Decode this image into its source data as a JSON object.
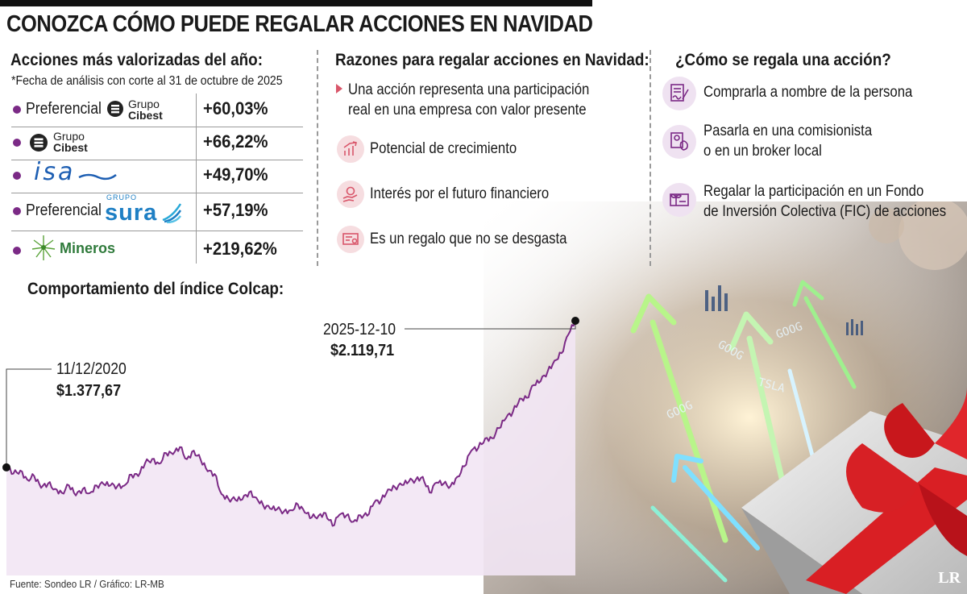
{
  "title": "CONOZCA CÓMO PUEDE REGALAR ACCIONES EN NAVIDAD",
  "stocks_section": {
    "heading": "Acciones más valorizadas del año:",
    "note": "*Fecha de análisis con corte al 31 de octubre de 2025",
    "rows": [
      {
        "prefix": "Preferencial",
        "logo_top": "Grupo",
        "logo_bottom": "Cibest",
        "value": "+60,03%"
      },
      {
        "prefix": "",
        "logo_top": "Grupo",
        "logo_bottom": "Cibest",
        "value": "+66,22%"
      },
      {
        "prefix": "",
        "logo_text": "isa",
        "value": "+49,70%"
      },
      {
        "prefix": "Preferencial",
        "logo_top": "GRUPO",
        "logo_text": "sura",
        "value": "+57,19%"
      },
      {
        "prefix": "",
        "logo_text": "Mineros",
        "value": "+219,62%"
      }
    ]
  },
  "reasons_section": {
    "heading": "Razones para regalar acciones en Navidad:",
    "items": [
      {
        "lines": [
          "Una acción representa una participación",
          "real en una empresa con valor presente"
        ],
        "icon": "triangle-bullet-icon"
      },
      {
        "lines": [
          "Potencial de crecimiento"
        ],
        "icon": "growth-chart-icon"
      },
      {
        "lines": [
          "Interés por el futuro financiero"
        ],
        "icon": "money-hand-icon"
      },
      {
        "lines": [
          "Es un regalo que no se desgasta"
        ],
        "icon": "certificate-icon"
      }
    ]
  },
  "how_section": {
    "heading": "¿Cómo se regala una acción?",
    "items": [
      {
        "lines": [
          "Comprarla a nombre de la persona"
        ],
        "icon": "signed-document-icon"
      },
      {
        "lines": [
          "Pasarla en una comisionista",
          "o en un broker local"
        ],
        "icon": "money-bag-document-icon"
      },
      {
        "lines": [
          "Regalar la participación en un Fondo",
          "de Inversión Colectiva (FIC) de acciones"
        ],
        "icon": "gift-card-icon"
      }
    ]
  },
  "chart_heading": "Comportamiento del índice Colcap:",
  "chart_data": {
    "type": "line",
    "series": [
      {
        "values": [
          1378,
          1360,
          1345,
          1320,
          1310,
          1290,
          1300,
          1280,
          1255,
          1265,
          1240,
          1250,
          1270,
          1290,
          1300,
          1285,
          1260,
          1295,
          1330,
          1360,
          1400,
          1420,
          1390,
          1430,
          1460,
          1475,
          1445,
          1455,
          1410,
          1350,
          1330,
          1265,
          1215,
          1235,
          1200,
          1245,
          1220,
          1180,
          1195,
          1160,
          1170,
          1140,
          1185,
          1150,
          1125,
          1160,
          1135,
          1090,
          1115,
          1135,
          1110,
          1140,
          1155,
          1180,
          1215,
          1245,
          1285,
          1300,
          1310,
          1330,
          1305,
          1255,
          1285,
          1310,
          1295,
          1330,
          1390,
          1435,
          1485,
          1515,
          1545,
          1585,
          1620,
          1660,
          1700,
          1745,
          1790,
          1835,
          1865,
          1905,
          1955,
          2030,
          2119.71
        ]
      }
    ],
    "annotations": [
      {
        "date": "11/12/2020",
        "value": "$1.377,67"
      },
      {
        "date": "2025-12-10",
        "value": "$2.119,71"
      }
    ],
    "ylim": [
      1000,
      2200
    ],
    "grid": false,
    "fill": "area under line in light purple"
  },
  "source": "Fuente: Sondeo LR / Gráfico: LR-MB",
  "colors": {
    "accent": "#7b2a86",
    "fill": "#f2e6f4",
    "reason_icon": "#d9566a",
    "how_icon": "#7b2a86"
  },
  "badge": "LR",
  "illustration": {
    "text_marks": [
      "GOOG",
      "TSLA",
      "GOOG",
      "GOOG"
    ]
  }
}
